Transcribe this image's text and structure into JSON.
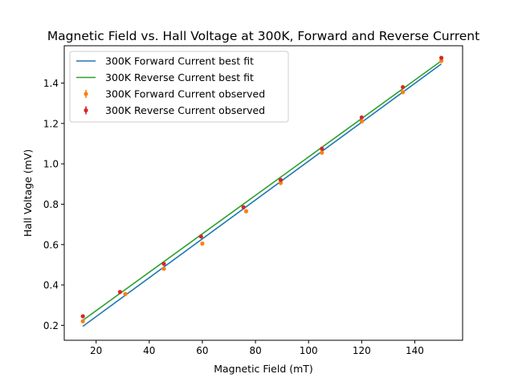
{
  "chart_data": {
    "type": "line",
    "title": "Magnetic Field vs. Hall Voltage at 300K, Forward and Reverse Current",
    "xlabel": "Magnetic Field (mT)",
    "ylabel": "Hall Voltage (mV)",
    "xlim": [
      8,
      158
    ],
    "ylim": [
      0.126,
      1.585
    ],
    "xticks": [
      20,
      40,
      60,
      80,
      100,
      120,
      140
    ],
    "yticks": [
      0.2,
      0.4,
      0.6,
      0.8,
      1.0,
      1.2,
      1.4
    ],
    "xtick_labels": [
      "20",
      "40",
      "60",
      "80",
      "100",
      "120",
      "140"
    ],
    "ytick_labels": [
      "0.2",
      "0.4",
      "0.6",
      "0.8",
      "1.0",
      "1.2",
      "1.4"
    ],
    "grid": false,
    "legend_position": "top-left",
    "series": [
      {
        "name": "300K Forward Current best fit",
        "kind": "line",
        "color": "#1f77b4",
        "x": [
          15,
          150
        ],
        "y": [
          0.195,
          1.495
        ]
      },
      {
        "name": "300K Reverse Current best fit",
        "kind": "line",
        "color": "#2ca02c",
        "x": [
          15,
          150
        ],
        "y": [
          0.225,
          1.51
        ]
      },
      {
        "name": "300K Forward Current observed",
        "kind": "points",
        "color": "#ff7f0e",
        "x": [
          15,
          31,
          45.5,
          60,
          76.5,
          89.5,
          105,
          120,
          135.5,
          150
        ],
        "y": [
          0.22,
          0.355,
          0.48,
          0.605,
          0.765,
          0.905,
          1.055,
          1.21,
          1.355,
          1.51
        ]
      },
      {
        "name": "300K Reverse Current observed",
        "kind": "points",
        "color": "#d62728",
        "x": [
          15,
          29,
          45.5,
          59.5,
          75.5,
          89.5,
          105,
          120,
          135.5,
          150
        ],
        "y": [
          0.245,
          0.365,
          0.505,
          0.64,
          0.785,
          0.92,
          1.075,
          1.23,
          1.38,
          1.525
        ]
      }
    ]
  }
}
